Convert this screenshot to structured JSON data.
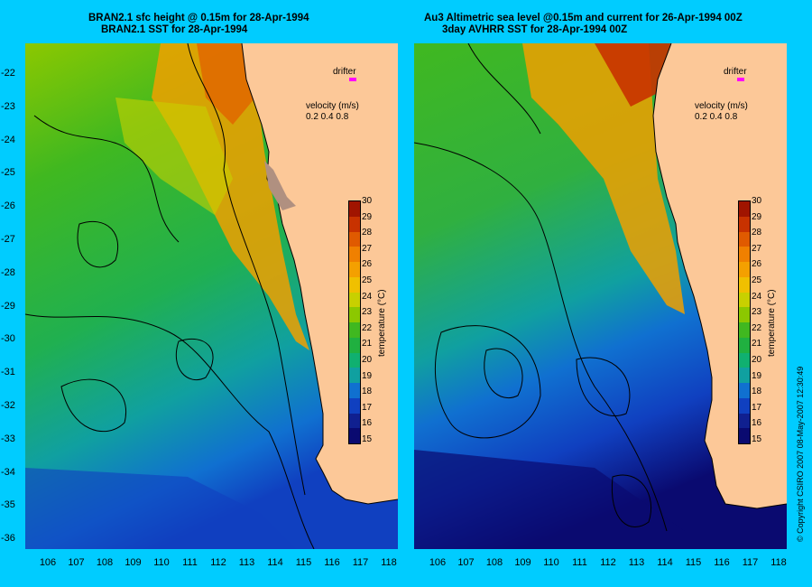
{
  "left_panel": {
    "title_line1": "BRAN2.1 sfc height @ 0.15m for 28-Apr-1994",
    "title_line2": "BRAN2.1  SST for 28-Apr-1994"
  },
  "right_panel": {
    "title_line1": "Au3 Altimetric sea level  @0.15m and current for 26-Apr-1994 00Z",
    "title_line2": "3day AVHRR SST for 28-Apr-1994 00Z"
  },
  "latitudes": [
    "-22",
    "-23",
    "-24",
    "-25",
    "-26",
    "-27",
    "-28",
    "-29",
    "-30",
    "-31",
    "-32",
    "-33",
    "-34",
    "-35",
    "-36"
  ],
  "longitudes": [
    "106",
    "107",
    "108",
    "109",
    "110",
    "111",
    "112",
    "113",
    "114",
    "115",
    "116",
    "117",
    "118"
  ],
  "legend": {
    "drifter": "drifter",
    "velocity_title": "velocity (m/s)",
    "velocity_scale": "0.2 0.4 0.8"
  },
  "colorbar": {
    "ticks": [
      "30",
      "29",
      "28",
      "27",
      "26",
      "25",
      "24",
      "23",
      "22",
      "21",
      "20",
      "19",
      "18",
      "17",
      "16",
      "15"
    ],
    "title": "temperature (°C)",
    "colors": [
      "#a01400",
      "#c83200",
      "#e05a00",
      "#f08000",
      "#f4a000",
      "#f0c000",
      "#c8d000",
      "#8cc800",
      "#40b820",
      "#20b040",
      "#10b070",
      "#10a0a0",
      "#1070d0",
      "#1040c0",
      "#102090",
      "#0a0a70"
    ]
  },
  "copyright": "© Copyright CSIRO 2007   08-May-2007 12:30:49",
  "colors": {
    "background": "#00ccff",
    "land": "#fcc898",
    "drifter": "#ff00ff"
  }
}
